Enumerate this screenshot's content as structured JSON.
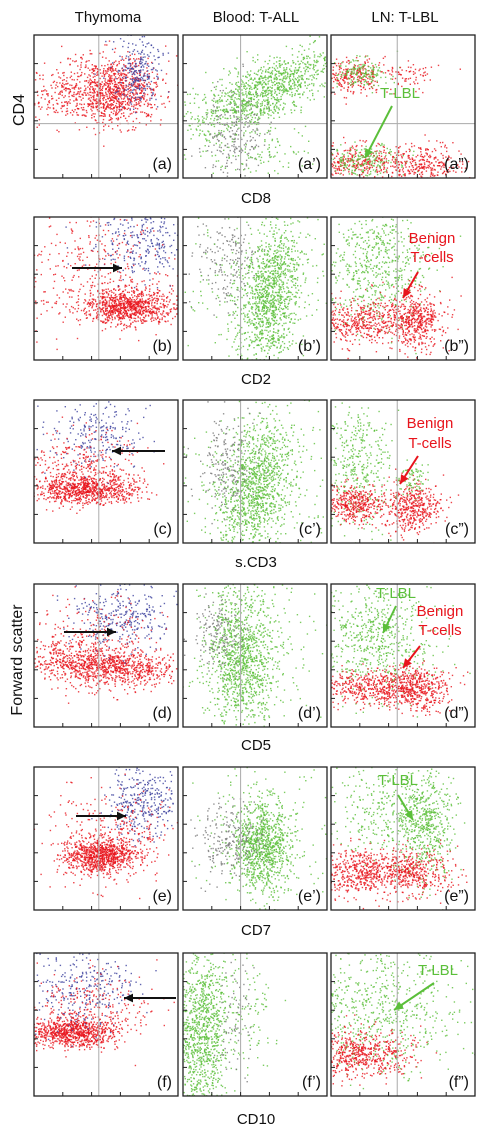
{
  "headers": {
    "col1": "Thymoma",
    "col2": "Blood: T-ALL",
    "col3": "LN: T-LBL"
  },
  "y_labels": {
    "cd4": "CD4",
    "fsc": "Forward scatter"
  },
  "rows": [
    {
      "marker": "CD8",
      "panels": [
        "(a)",
        "(a’)",
        "(a”)"
      ],
      "annotations": [
        "T-LBL"
      ]
    },
    {
      "marker": "CD2",
      "panels": [
        "(b)",
        "(b’)",
        "(b”)"
      ],
      "annotations": [
        "Benign",
        "T-cells"
      ]
    },
    {
      "marker": "s.CD3",
      "panels": [
        "(c)",
        "(c’)",
        "(c”)"
      ],
      "annotations": [
        "Benign",
        "T-cells"
      ]
    },
    {
      "marker": "CD5",
      "panels": [
        "(d)",
        "(d’)",
        "(d”)"
      ],
      "annotations": [
        "T-LBL",
        "Benign",
        "T-cells"
      ]
    },
    {
      "marker": "CD7",
      "panels": [
        "(e)",
        "(e’)",
        "(e”)"
      ],
      "annotations": [
        "T-LBL"
      ]
    },
    {
      "marker": "CD10",
      "panels": [
        "(f)",
        "(f’)",
        "(f”)"
      ],
      "annotations": [
        "T-LBL"
      ]
    }
  ],
  "colors": {
    "red": "#e8141c",
    "blue": "#3a3f9c",
    "green": "#5bbf3a",
    "grey": "#777777",
    "frame": "#222222",
    "guide": "#aaaaaa"
  }
}
